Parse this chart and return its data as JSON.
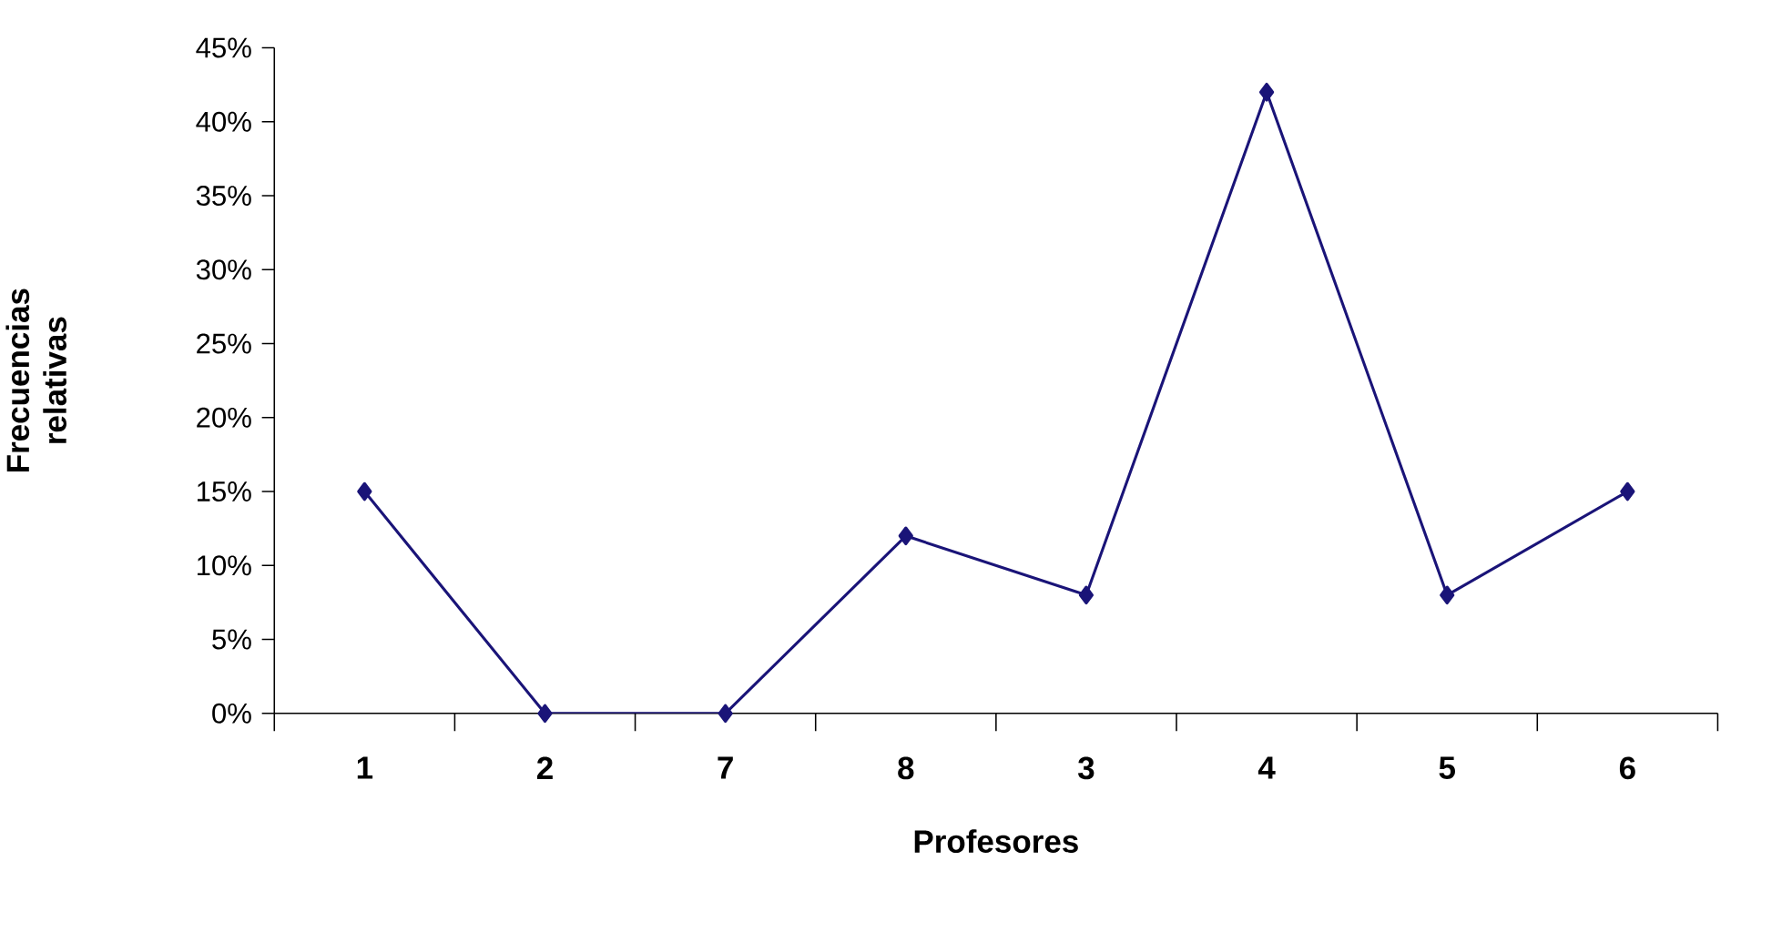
{
  "chart_data": {
    "type": "line",
    "xlabel": "Profesores",
    "ylabel": "Frecuencias relativas",
    "categories": [
      "1",
      "2",
      "7",
      "8",
      "3",
      "4",
      "5",
      "6"
    ],
    "series": [
      {
        "color": "#1a1478",
        "values": [
          15,
          0,
          0,
          12,
          8,
          42,
          8,
          15
        ]
      }
    ],
    "ylim": [
      0,
      45
    ],
    "yticks": [
      {
        "value": 0,
        "label": "0%"
      },
      {
        "value": 5,
        "label": "5%"
      },
      {
        "value": 10,
        "label": "10%"
      },
      {
        "value": 15,
        "label": "15%"
      },
      {
        "value": 20,
        "label": "20%"
      },
      {
        "value": 25,
        "label": "25%"
      },
      {
        "value": 30,
        "label": "30%"
      },
      {
        "value": 35,
        "label": "35%"
      },
      {
        "value": 40,
        "label": "40%"
      },
      {
        "value": 45,
        "label": "45%"
      }
    ],
    "marker": "diamond",
    "line_style": "solid"
  }
}
